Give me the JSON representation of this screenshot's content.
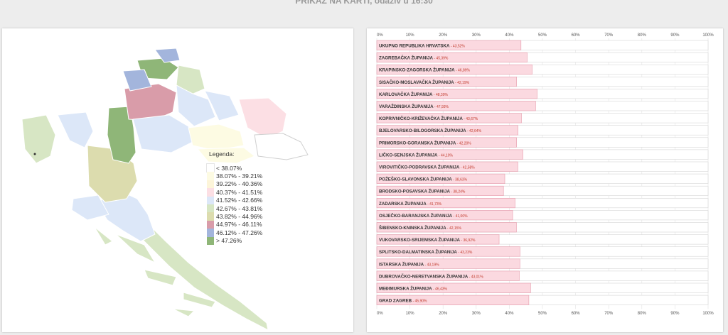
{
  "header": {
    "title": "PRIKAZ NA KARTI, odaziv u 16:30"
  },
  "legend": {
    "title": "Legenda:",
    "items": [
      {
        "label": "< 38.07%",
        "color": "#ffffff"
      },
      {
        "label": "38.07% - 39.21%",
        "color": "#fdfbe3"
      },
      {
        "label": "39.22% - 40.36%",
        "color": "#fdf5d9"
      },
      {
        "label": "40.37% - 41.51%",
        "color": "#fcdfe4"
      },
      {
        "label": "41.52% - 42.66%",
        "color": "#dce7f8"
      },
      {
        "label": "42.67% - 43.81%",
        "color": "#d7e6c4"
      },
      {
        "label": "43.82% - 44.96%",
        "color": "#dcdcae"
      },
      {
        "label": "44.97% - 46.11%",
        "color": "#d99ca9"
      },
      {
        "label": "46.12% - 47.26%",
        "color": "#a3b5dc"
      },
      {
        "label": "> 47.26%",
        "color": "#8fb678"
      }
    ]
  },
  "chart_data": {
    "type": "bar",
    "orientation": "horizontal",
    "xlim": [
      0,
      100
    ],
    "ticks": [
      "0%",
      "10%",
      "20%",
      "30%",
      "40%",
      "50%",
      "60%",
      "70%",
      "80%",
      "90%",
      "100%"
    ],
    "categories": [
      "UKUPNO REPUBLIKA HRVATSKA",
      "ZAGREBAČKA ŽUPANIJA",
      "KRAPINSKO-ZAGORSKA ŽUPANIJA",
      "SISAČKO-MOSLAVAČKA ŽUPANIJA",
      "KARLOVAČKA ŽUPANIJA",
      "VARAŽDINSKA ŽUPANIJA",
      "KOPRIVNIČKO-KRIŽEVAČKA ŽUPANIJA",
      "BJELOVARSKO-BILOGORSKA ŽUPANIJA",
      "PRIMORSKO-GORANSKA ŽUPANIJA",
      "LIČKO-SENJSKA ŽUPANIJA",
      "VIROVITIČKO-PODRAVSKA ŽUPANIJA",
      "POŽEŠKO-SLAVONSKA ŽUPANIJA",
      "BRODSKO-POSAVSKA ŽUPANIJA",
      "ZADARSKA ŽUPANIJA",
      "OSJEČKO-BARANJSKA ŽUPANIJA",
      "ŠIBENSKO-KNINSKA ŽUPANIJA",
      "VUKOVARSKO-SRIJEMSKA ŽUPANIJA",
      "SPLITSKO-DALMATINSKA ŽUPANIJA",
      "ISTARSKA ŽUPANIJA",
      "DUBROVAČKO-NERETVANSKA ŽUPANIJA",
      "MEĐIMURSKA ŽUPANIJA",
      "GRAD ZAGREB"
    ],
    "values": [
      43.52,
      45.39,
      46.89,
      42.19,
      48.39,
      47.93,
      43.67,
      42.64,
      42.2,
      44.1,
      42.58,
      38.63,
      38.24,
      41.73,
      41.0,
      42.15,
      36.92,
      43.23,
      43.19,
      43.01,
      46.43,
      45.9
    ],
    "value_labels": [
      "43,52%",
      "45,39%",
      "46,89%",
      "42,19%",
      "48,39%",
      "47,93%",
      "43,67%",
      "42,64%",
      "42,20%",
      "44,10%",
      "42,58%",
      "38,63%",
      "38,24%",
      "41,73%",
      "41,00%",
      "42,15%",
      "36,92%",
      "43,23%",
      "43,19%",
      "43,01%",
      "46,43%",
      "45,90%"
    ],
    "bar_color": "#fbd9e0",
    "bar_border": "#e69aab"
  }
}
